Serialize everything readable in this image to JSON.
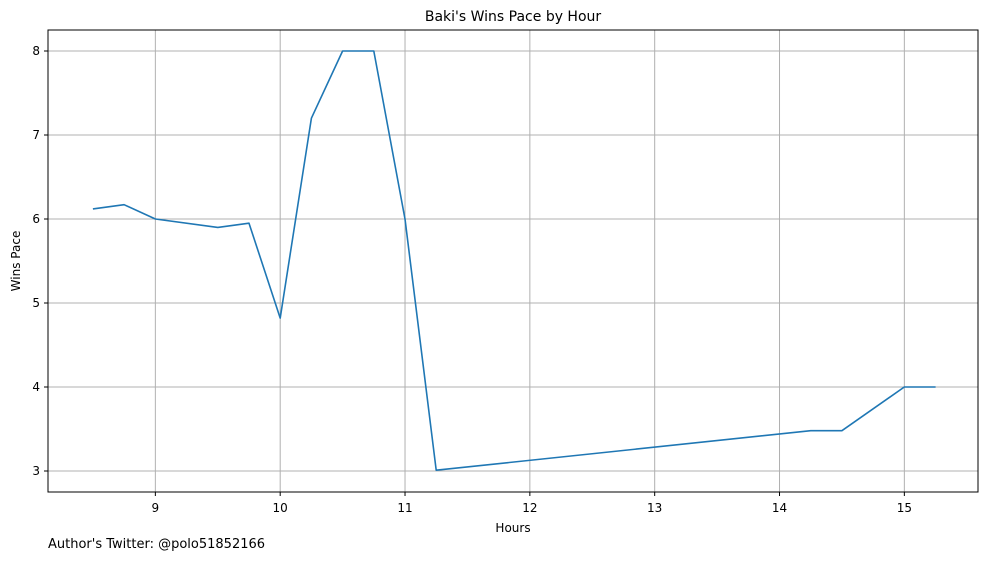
{
  "chart_data": {
    "type": "line",
    "title": "Baki's Wins Pace by Hour",
    "xlabel": "Hours",
    "ylabel": "Wins Pace",
    "xlim": [
      8.14,
      15.59
    ],
    "ylim": [
      2.75,
      8.25
    ],
    "xticks": [
      9,
      10,
      11,
      12,
      13,
      14,
      15
    ],
    "yticks": [
      3,
      4,
      5,
      6,
      7,
      8
    ],
    "grid": true,
    "series": [
      {
        "color": "#1f77b4",
        "x": [
          8.5,
          8.75,
          9.0,
          9.5,
          9.75,
          10.0,
          10.25,
          10.5,
          10.75,
          11.0,
          11.25,
          14.25,
          14.5,
          15.0,
          15.25
        ],
        "y": [
          6.12,
          6.17,
          6.0,
          5.9,
          5.95,
          4.82,
          7.2,
          8.0,
          8.0,
          6.0,
          3.01,
          3.48,
          3.48,
          4.0,
          4.0
        ]
      }
    ]
  },
  "footer": {
    "credit": "Author's Twitter: @polo51852166"
  }
}
